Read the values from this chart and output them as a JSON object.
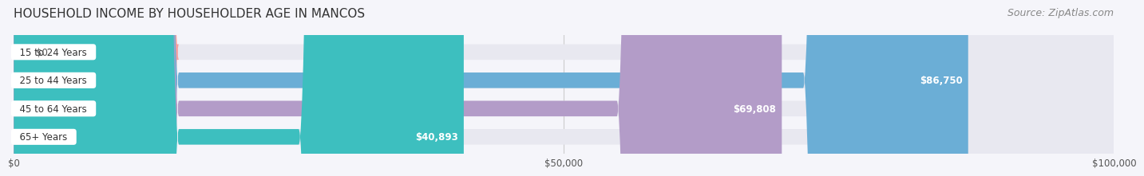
{
  "title": "HOUSEHOLD INCOME BY HOUSEHOLDER AGE IN MANCOS",
  "source": "Source: ZipAtlas.com",
  "categories": [
    "15 to 24 Years",
    "25 to 44 Years",
    "45 to 64 Years",
    "65+ Years"
  ],
  "values": [
    0,
    86750,
    69808,
    40893
  ],
  "bar_colors": [
    "#f4a0a0",
    "#6baed6",
    "#b39cc8",
    "#3dbfbf"
  ],
  "track_color": "#e8e8f0",
  "label_bg_color": "#ffffff",
  "x_max": 100000,
  "x_ticks": [
    0,
    50000,
    100000
  ],
  "x_tick_labels": [
    "$0",
    "$50,000",
    "$100,000"
  ],
  "value_labels": [
    "$0",
    "$86,750",
    "$69,808",
    "$40,893"
  ],
  "title_fontsize": 11,
  "source_fontsize": 9,
  "bar_height": 0.55,
  "background_color": "#f5f5fa"
}
